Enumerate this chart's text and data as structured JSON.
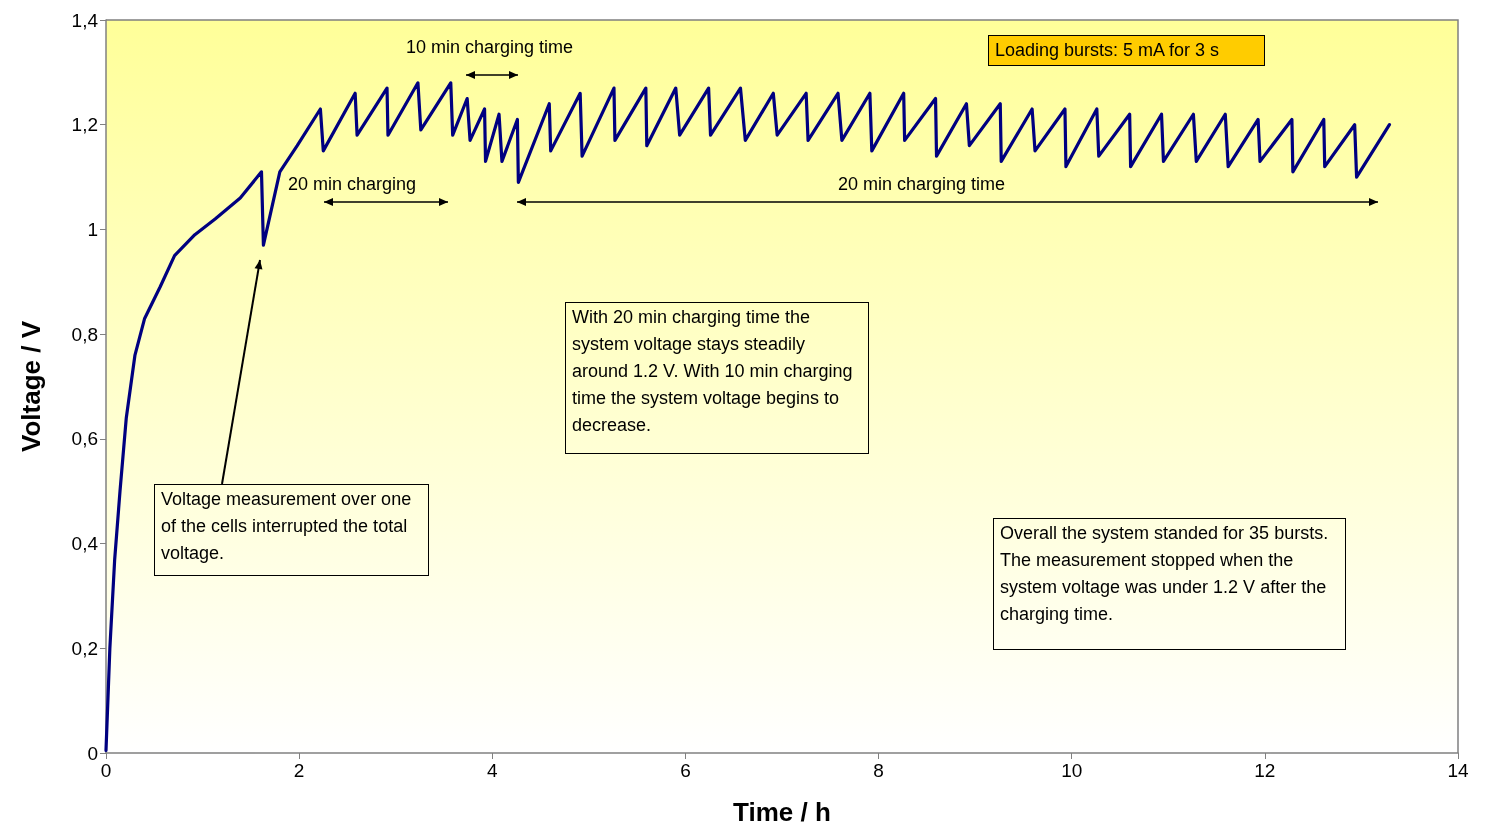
{
  "chart_data": {
    "type": "line",
    "xlabel": "Time / h",
    "ylabel": "Voltage / V",
    "x": [
      0,
      0.04,
      0.09,
      0.145,
      0.21,
      0.3,
      0.4,
      0.56,
      0.71,
      0.92,
      1.13,
      1.39,
      1.61,
      1.63,
      1.8,
      1.98,
      2.22,
      2.25,
      2.58,
      2.6,
      2.91,
      2.92,
      3.23,
      3.26,
      3.57,
      3.59,
      3.74,
      3.77,
      3.92,
      3.93,
      4.07,
      4.1,
      4.26,
      4.27,
      4.59,
      4.605,
      4.91,
      4.93,
      5.26,
      5.27,
      5.59,
      5.6,
      5.9,
      5.94,
      6.24,
      6.26,
      6.57,
      6.62,
      6.91,
      6.95,
      7.25,
      7.27,
      7.58,
      7.62,
      7.91,
      7.93,
      8.26,
      8.27,
      8.59,
      8.6,
      8.91,
      8.94,
      9.26,
      9.27,
      9.59,
      9.62,
      9.93,
      9.94,
      10.26,
      10.28,
      10.6,
      10.61,
      10.93,
      10.95,
      11.26,
      11.29,
      11.59,
      11.62,
      11.93,
      11.95,
      12.28,
      12.29,
      12.61,
      12.62,
      12.93,
      12.95,
      13.29
    ],
    "series": [
      {
        "color": "#000080",
        "values": [
          0.005,
          0.2,
          0.37,
          0.5,
          0.64,
          0.76,
          0.83,
          0.89,
          0.95,
          0.99,
          1.02,
          1.06,
          1.11,
          0.97,
          1.11,
          1.16,
          1.23,
          1.15,
          1.26,
          1.18,
          1.27,
          1.18,
          1.28,
          1.19,
          1.28,
          1.18,
          1.25,
          1.17,
          1.23,
          1.13,
          1.22,
          1.13,
          1.21,
          1.09,
          1.24,
          1.15,
          1.26,
          1.14,
          1.27,
          1.17,
          1.27,
          1.16,
          1.27,
          1.18,
          1.27,
          1.18,
          1.27,
          1.17,
          1.26,
          1.18,
          1.26,
          1.17,
          1.26,
          1.17,
          1.26,
          1.15,
          1.26,
          1.17,
          1.25,
          1.14,
          1.24,
          1.16,
          1.24,
          1.13,
          1.23,
          1.15,
          1.23,
          1.12,
          1.23,
          1.14,
          1.22,
          1.12,
          1.22,
          1.13,
          1.22,
          1.13,
          1.22,
          1.12,
          1.21,
          1.13,
          1.21,
          1.11,
          1.21,
          1.12,
          1.2,
          1.1,
          1.2
        ]
      }
    ],
    "xlim": [
      0,
      14
    ],
    "xticks": [
      0,
      2,
      4,
      6,
      8,
      10,
      12,
      14
    ],
    "ylim": [
      0,
      1.4
    ],
    "yticks": [
      0,
      {
        "value": 0.2,
        "label": "0,2"
      },
      {
        "value": 0.4,
        "label": "0,4"
      },
      {
        "value": 0.6,
        "label": "0,6"
      },
      {
        "value": 0.8,
        "label": "0,8"
      },
      1,
      {
        "value": 1.2,
        "label": "1,2"
      },
      {
        "value": 1.4,
        "label": "1,4"
      }
    ],
    "grid": false,
    "marker": "none",
    "line_style": "solid",
    "annotations": [
      "10 min charging time",
      "20 min charging",
      "20 min charging time",
      "Loading bursts: 5 mA for 3 s",
      "With 20 min charging time the system voltage stays steadily around 1.2 V. With 10 min charging time the system voltage begins to decrease.",
      "Voltage measurement over one of the cells interrupted the total voltage.",
      "Overall the system standed for 35 bursts. The measurement stopped when the system voltage was under 1.2 V after the charging time."
    ]
  }
}
